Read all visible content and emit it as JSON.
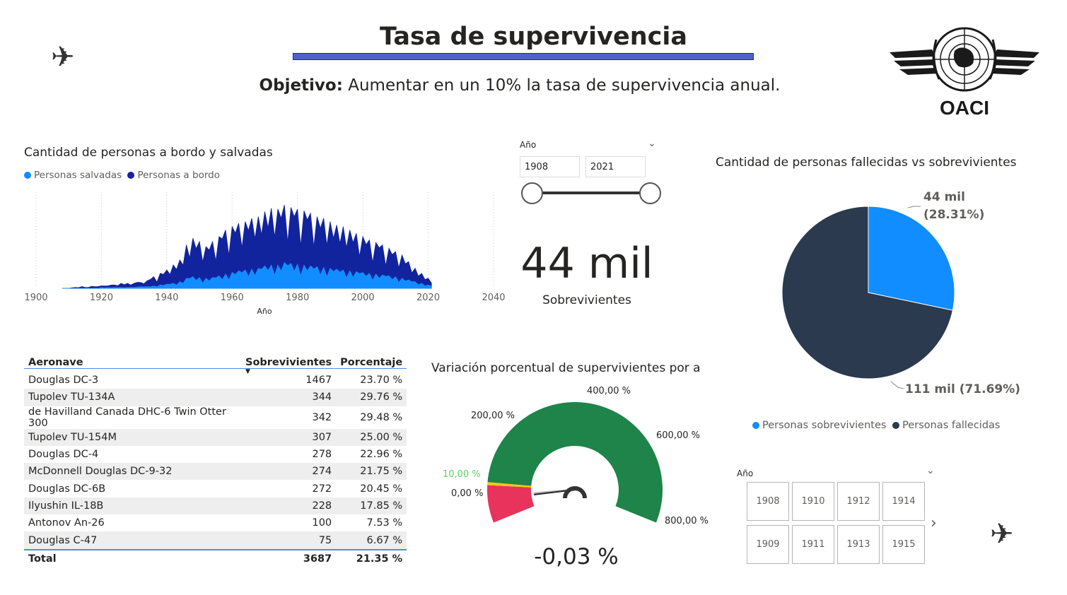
{
  "header": {
    "title": "Tasa de supervivencia",
    "objective_label": "Objetivo:",
    "objective_text": " Aumentar en un 10% la tasa de supervivencia anual.",
    "logo_text": "OACI",
    "plane_glyph": "✈"
  },
  "area_chart": {
    "title": "Cantidad de personas a bordo y salvadas",
    "legend": [
      {
        "name": "Personas salvadas",
        "color": "#118dff"
      },
      {
        "name": "Personas a bordo",
        "color": "#12239e"
      }
    ],
    "xlabel": "Año",
    "x_ticks": [
      "1900",
      "1920",
      "1940",
      "1960",
      "1980",
      "2000",
      "2020",
      "2040"
    ],
    "chart_data": {
      "type": "area",
      "x_range": [
        1900,
        2040
      ],
      "x_year_start": 1908,
      "x_year_end": 2021,
      "series": [
        {
          "name": "Personas a bordo",
          "color": "#12239e",
          "values": [
            0,
            0,
            0,
            1,
            1,
            1,
            2,
            2,
            1,
            3,
            2,
            3,
            3,
            4,
            3,
            5,
            4,
            5,
            6,
            5,
            6,
            7,
            6,
            8,
            7,
            10,
            9,
            12,
            14,
            13,
            18,
            20,
            22,
            26,
            28,
            30,
            34,
            38,
            52,
            55,
            60,
            58,
            56,
            54,
            50,
            52,
            56,
            60,
            62,
            66,
            70,
            72,
            74,
            76,
            78,
            82,
            80,
            86,
            84,
            88,
            86,
            90,
            92,
            94,
            96,
            98,
            95,
            99,
            100,
            98,
            97,
            96,
            95,
            94,
            93,
            92,
            90,
            88,
            86,
            85,
            84,
            82,
            80,
            78,
            76,
            75,
            74,
            72,
            70,
            68,
            66,
            64,
            62,
            60,
            58,
            56,
            55,
            54,
            52,
            50,
            48,
            46,
            44,
            42,
            40,
            36,
            32,
            28,
            24,
            20,
            18,
            14,
            12,
            10
          ]
        },
        {
          "name": "Personas salvadas",
          "color": "#118dff",
          "values": [
            0,
            0,
            0,
            0,
            0,
            0,
            0,
            0,
            0,
            0,
            0,
            0,
            1,
            1,
            1,
            1,
            1,
            1,
            1,
            1,
            1,
            2,
            1,
            2,
            2,
            2,
            2,
            3,
            3,
            3,
            4,
            4,
            5,
            6,
            6,
            7,
            8,
            9,
            12,
            13,
            14,
            13,
            13,
            12,
            12,
            12,
            13,
            14,
            15,
            16,
            17,
            18,
            19,
            20,
            21,
            22,
            22,
            24,
            23,
            25,
            24,
            26,
            27,
            27,
            28,
            29,
            28,
            30,
            31,
            30,
            30,
            29,
            29,
            28,
            28,
            27,
            27,
            26,
            26,
            26,
            25,
            25,
            24,
            24,
            23,
            23,
            22,
            22,
            21,
            21,
            20,
            20,
            19,
            19,
            18,
            18,
            17,
            17,
            16,
            16,
            15,
            15,
            14,
            13,
            12,
            11,
            10,
            9,
            8,
            7,
            6,
            5,
            4,
            3
          ]
        }
      ]
    }
  },
  "slicer_range": {
    "label": "Año",
    "from": "1908",
    "to": "2021"
  },
  "kpi": {
    "value": "44 mil",
    "label": "Sobrevivientes"
  },
  "pie_chart": {
    "title": "Cantidad de personas fallecidas vs sobrevivientes",
    "chart_data": {
      "type": "pie",
      "slices": [
        {
          "name": "Personas sobrevivientes",
          "value": 44,
          "percent": 28.31,
          "color": "#118dff"
        },
        {
          "name": "Personas fallecidas",
          "value": 111,
          "percent": 71.69,
          "color": "#2b3a4f"
        }
      ]
    },
    "label_surv_1": "44 mil",
    "label_surv_2": "(28.31%)",
    "label_dead": "111 mil (71.69%)",
    "legend": [
      {
        "name": "Personas sobrevivientes",
        "color": "#118dff"
      },
      {
        "name": "Personas fallecidas",
        "color": "#2b3a4f"
      }
    ]
  },
  "table": {
    "headers": [
      "Aeronave",
      "Sobrevivientes",
      "Porcentaje"
    ],
    "rows": [
      {
        "aeronave": "Douglas DC-3",
        "sobrevivientes": "1467",
        "porcentaje": "23.70 %"
      },
      {
        "aeronave": "Tupolev TU-134A",
        "sobrevivientes": "344",
        "porcentaje": "29.76 %"
      },
      {
        "aeronave": "de Havilland Canada DHC-6 Twin Otter 300",
        "sobrevivientes": "342",
        "porcentaje": "29.48 %"
      },
      {
        "aeronave": "Tupolev TU-154M",
        "sobrevivientes": "307",
        "porcentaje": "25.00 %"
      },
      {
        "aeronave": "Douglas DC-4",
        "sobrevivientes": "278",
        "porcentaje": "22.96 %"
      },
      {
        "aeronave": "McDonnell Douglas DC-9-32",
        "sobrevivientes": "274",
        "porcentaje": "21.75 %"
      },
      {
        "aeronave": "Douglas DC-6B",
        "sobrevivientes": "272",
        "porcentaje": "20.45 %"
      },
      {
        "aeronave": "Ilyushin IL-18B",
        "sobrevivientes": "228",
        "porcentaje": "17.85 %"
      },
      {
        "aeronave": "Antonov An-26",
        "sobrevivientes": "100",
        "porcentaje": "7.53 %"
      },
      {
        "aeronave": "Douglas C-47",
        "sobrevivientes": "75",
        "porcentaje": "6.67 %"
      }
    ],
    "total": {
      "label": "Total",
      "sobrevivientes": "3687",
      "porcentaje": "21.35 %"
    }
  },
  "gauge": {
    "title": "Variación porcentual de supervivientes por a",
    "labels": {
      "l0": "0,00 %",
      "l10": "10,00 %",
      "l200": "200,00 %",
      "l400": "400,00 %",
      "l600": "600,00 %",
      "l800": "800,00 %"
    },
    "value": "-0,03 %",
    "colors": {
      "good": "#1e8449",
      "bad": "#e8335d",
      "target": "#5cd65c"
    }
  },
  "slicer_tiles": {
    "label": "Año",
    "tiles": [
      "1908",
      "1910",
      "1912",
      "1914",
      "1909",
      "1911",
      "1913",
      "1915"
    ]
  }
}
